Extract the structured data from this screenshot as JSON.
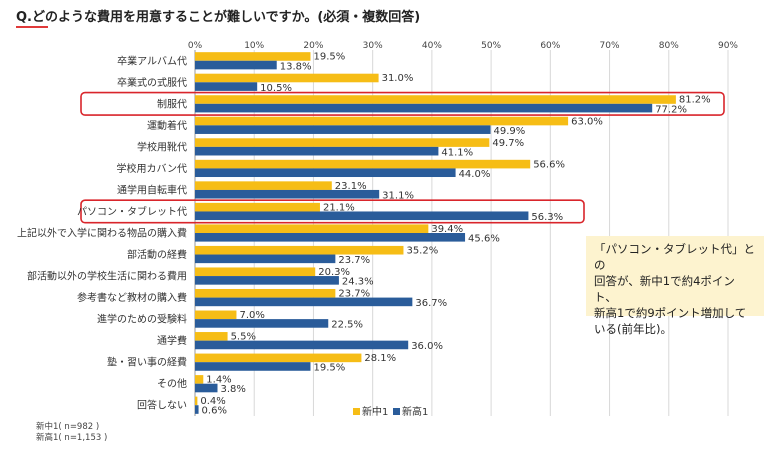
{
  "title": "Q.どのような費用を用意することが難しいですか。(必須・複数回答)",
  "note": {
    "lines": [
      "「パソコン・タブレット代」との",
      "回答が、新中1で約4ポイント、",
      "新高1で約9ポイント増加して",
      "いる(前年比)。"
    ]
  },
  "sample_sizes": {
    "junior": "新中1( n=982 )",
    "senior": "新高1( n=1,153 )"
  },
  "colors": {
    "junior": "#f6bd16",
    "senior": "#2a5c9a",
    "highlight": "#d9252b"
  },
  "chart_data": {
    "type": "bar",
    "orientation": "horizontal",
    "title": "Q.どのような費用を用意することが難しいですか。(必須・複数回答)",
    "xlim": [
      0,
      90
    ],
    "xticks": [
      "0%",
      "10%",
      "20%",
      "30%",
      "40%",
      "50%",
      "60%",
      "70%",
      "80%",
      "90%"
    ],
    "grid": true,
    "legend_position": "bottom-right",
    "categories": [
      "卒業アルバム代",
      "卒業式の式服代",
      "制服代",
      "運動着代",
      "学校用靴代",
      "学校用カバン代",
      "通学用自転車代",
      "パソコン・タブレット代",
      "上記以外で入学に関わる物品の購入費",
      "部活動の経費",
      "部活動以外の学校生活に関わる費用",
      "参考書など教材の購入費",
      "進学のための受験料",
      "通学費",
      "塾・習い事の経費",
      "その他",
      "回答しない"
    ],
    "series": [
      {
        "name": "新中1",
        "values": [
          19.5,
          31.0,
          81.2,
          63.0,
          49.7,
          56.6,
          23.1,
          21.1,
          39.4,
          35.2,
          20.3,
          23.7,
          7.0,
          5.5,
          28.1,
          1.4,
          0.4
        ],
        "labels": [
          "19.5%",
          "31.0%",
          "81.2%",
          "63.0%",
          "49.7%",
          "56.6%",
          "23.1%",
          "21.1%",
          "39.4%",
          "35.2%",
          "20.3%",
          "23.7%",
          "7.0%",
          "5.5%",
          "28.1%",
          "1.4%",
          "0.4%"
        ]
      },
      {
        "name": "新高1",
        "values": [
          13.8,
          10.5,
          77.2,
          49.9,
          41.1,
          44.0,
          31.1,
          56.3,
          45.6,
          23.7,
          24.3,
          36.7,
          22.5,
          36.0,
          19.5,
          3.8,
          0.6
        ],
        "labels": [
          "13.8%",
          "10.5%",
          "77.2%",
          "49.9%",
          "41.1%",
          "44.0%",
          "31.1%",
          "56.3%",
          "45.6%",
          "23.7%",
          "24.3%",
          "36.7%",
          "22.5%",
          "36.0%",
          "19.5%",
          "3.8%",
          "0.6%"
        ]
      }
    ],
    "highlighted_categories": [
      "制服代",
      "パソコン・タブレット代"
    ]
  }
}
